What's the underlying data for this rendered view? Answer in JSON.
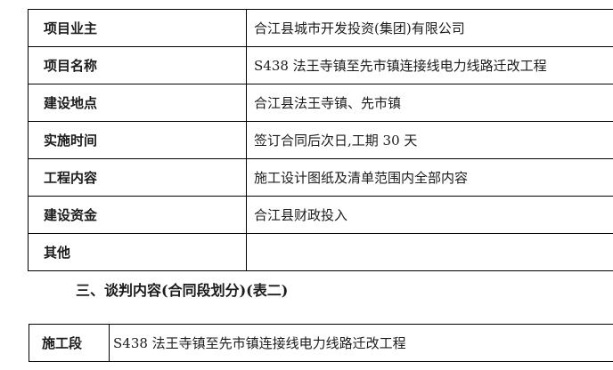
{
  "colors": {
    "background": "#ffffff",
    "border": "#000000",
    "text": "#1c1c1c"
  },
  "table_one": {
    "rows": [
      {
        "label": "项目业主",
        "value": "合江县城市开发投资(集团)有限公司"
      },
      {
        "label": "项目名称",
        "value": "S438 法王寺镇至先市镇连接线电力线路迁改工程"
      },
      {
        "label": "建设地点",
        "value": "合江县法王寺镇、先市镇"
      },
      {
        "label": "实施时间",
        "value": "签订合同后次日,工期 30 天"
      },
      {
        "label": "工程内容",
        "value": "施工设计图纸及清单范围内全部内容"
      },
      {
        "label": "建设资金",
        "value": "合江县财政投入"
      },
      {
        "label": "其他",
        "value": ""
      }
    ]
  },
  "section_heading": "三、谈判内容(合同段划分)(表二)",
  "table_two": {
    "rows": [
      {
        "label": "施工段",
        "value": "S438 法王寺镇至先市镇连接线电力线路迁改工程"
      }
    ]
  }
}
